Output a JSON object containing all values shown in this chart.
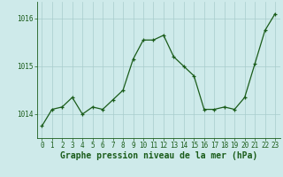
{
  "x": [
    0,
    1,
    2,
    3,
    4,
    5,
    6,
    7,
    8,
    9,
    10,
    11,
    12,
    13,
    14,
    15,
    16,
    17,
    18,
    19,
    20,
    21,
    22,
    23
  ],
  "y": [
    1013.75,
    1014.1,
    1014.15,
    1014.35,
    1014.0,
    1014.15,
    1014.1,
    1014.3,
    1014.5,
    1015.15,
    1015.55,
    1015.55,
    1015.65,
    1015.2,
    1015.0,
    1014.8,
    1014.1,
    1014.1,
    1014.15,
    1014.1,
    1014.35,
    1015.05,
    1015.75,
    1016.1
  ],
  "line_color": "#1a5c1a",
  "marker": "+",
  "marker_color": "#1a5c1a",
  "background_color": "#ceeaea",
  "grid_color": "#a8cccc",
  "xlabel": "Graphe pression niveau de la mer (hPa)",
  "xlabel_color": "#1a5c1a",
  "tick_color": "#1a5c1a",
  "ytick_labels": [
    "1014",
    "1015",
    "1016"
  ],
  "ytick_values": [
    1014,
    1015,
    1016
  ],
  "ylim": [
    1013.5,
    1016.35
  ],
  "xlim": [
    -0.5,
    23.5
  ],
  "label_fontsize": 7,
  "tick_fontsize": 5.5
}
